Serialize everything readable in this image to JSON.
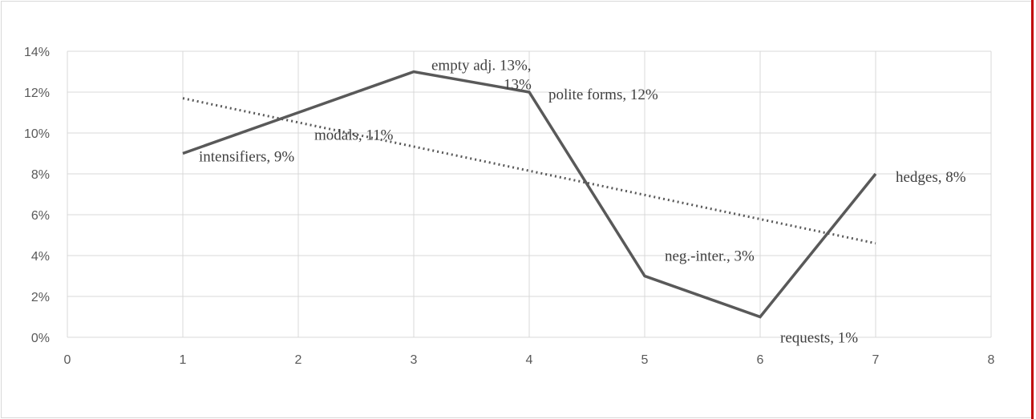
{
  "chart_data": {
    "type": "line",
    "title": "",
    "xlabel": "",
    "ylabel": "",
    "xlim": [
      0,
      8
    ],
    "ylim": [
      0,
      0.14
    ],
    "x_ticks": [
      "0",
      "1",
      "2",
      "3",
      "4",
      "5",
      "6",
      "7",
      "8"
    ],
    "y_ticks": [
      "0%",
      "2%",
      "4%",
      "6%",
      "8%",
      "10%",
      "12%",
      "14%"
    ],
    "grid": true,
    "legend": "none",
    "series": [
      {
        "x": [
          1,
          2,
          3,
          4,
          5,
          6,
          7
        ],
        "values": [
          0.09,
          0.11,
          0.13,
          0.12,
          0.03,
          0.01,
          0.08
        ],
        "labels": [
          "intensifiers, 9%",
          "modals, 11%",
          "empty adj.          13%,\n13%",
          "polite forms, 12%",
          "neg.-inter., 3%",
          "requests, 1%",
          "hedges, 8%"
        ],
        "color": "#595959"
      }
    ],
    "trendline": {
      "type": "linear",
      "style": "dotted",
      "color": "#595959",
      "x": [
        1,
        7
      ],
      "values": [
        0.117,
        0.046
      ]
    },
    "colors": {
      "grid": "#d9d9d9",
      "axis_text": "#595959",
      "label_text": "#404040",
      "frame_edge": "#c00000"
    }
  }
}
